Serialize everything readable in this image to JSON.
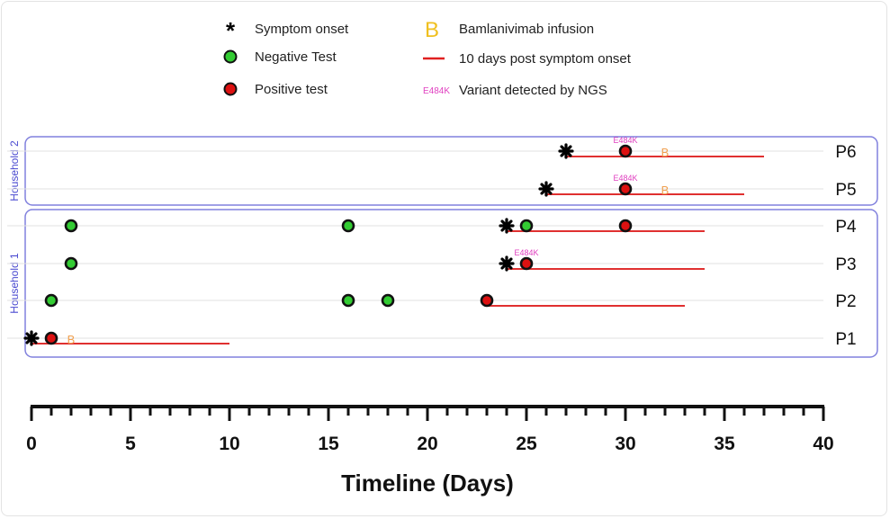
{
  "chart_data": {
    "type": "timeline",
    "xlabel": "Timeline (Days)",
    "xlim": [
      0,
      40
    ],
    "xticks": [
      0,
      5,
      10,
      15,
      20,
      25,
      30,
      35,
      40
    ],
    "minor_tick_step": 1,
    "grid": "horizontal row lines",
    "legend": {
      "placement": "top",
      "items": [
        {
          "key": "onset",
          "label": "Symptom onset",
          "marker": "asterisk",
          "color": "#000000"
        },
        {
          "key": "neg",
          "label": "Negative Test",
          "marker": "circle",
          "color": "#33cc33"
        },
        {
          "key": "pos",
          "label": "Positive test",
          "marker": "circle",
          "color": "#dd1111"
        },
        {
          "key": "bam",
          "label": "Bamlanivimab infusion",
          "marker": "B",
          "color": "#f0c020"
        },
        {
          "key": "post",
          "label": "10 days post symptom onset",
          "marker": "line",
          "color": "#e02020"
        },
        {
          "key": "variant",
          "label": "Variant detected by NGS",
          "marker": "E484K",
          "color": "#e040c0"
        }
      ]
    },
    "groups": [
      {
        "label": "Household 2",
        "patients": [
          "P6",
          "P5"
        ]
      },
      {
        "label": "Household 1",
        "patients": [
          "P4",
          "P3",
          "P2",
          "P1"
        ]
      }
    ],
    "patients": [
      {
        "id": "P6",
        "onset": 27,
        "negative": [],
        "positive": [
          30
        ],
        "variant": [
          {
            "day": 30,
            "label": "E484K"
          }
        ],
        "bamlanivimab": [
          32
        ],
        "post_window": [
          27,
          37
        ]
      },
      {
        "id": "P5",
        "onset": 26,
        "negative": [],
        "positive": [
          30
        ],
        "variant": [
          {
            "day": 30,
            "label": "E484K"
          }
        ],
        "bamlanivimab": [
          32
        ],
        "post_window": [
          26,
          36
        ]
      },
      {
        "id": "P4",
        "onset": 24,
        "negative": [
          2,
          16,
          25
        ],
        "positive": [
          30
        ],
        "variant": [],
        "bamlanivimab": [],
        "post_window": [
          24,
          34
        ]
      },
      {
        "id": "P3",
        "onset": 24,
        "negative": [
          2
        ],
        "positive": [
          25
        ],
        "variant": [
          {
            "day": 25,
            "label": "E484K"
          }
        ],
        "bamlanivimab": [],
        "post_window": [
          24,
          34
        ]
      },
      {
        "id": "P2",
        "onset": null,
        "negative": [
          1,
          16,
          18
        ],
        "positive": [
          23
        ],
        "variant": [],
        "bamlanivimab": [],
        "post_window": [
          23,
          33
        ]
      },
      {
        "id": "P1",
        "onset": 0,
        "negative": [],
        "positive": [
          1
        ],
        "variant": [],
        "bamlanivimab": [
          2
        ],
        "post_window": [
          0,
          10
        ]
      }
    ],
    "bam_label": "B"
  }
}
